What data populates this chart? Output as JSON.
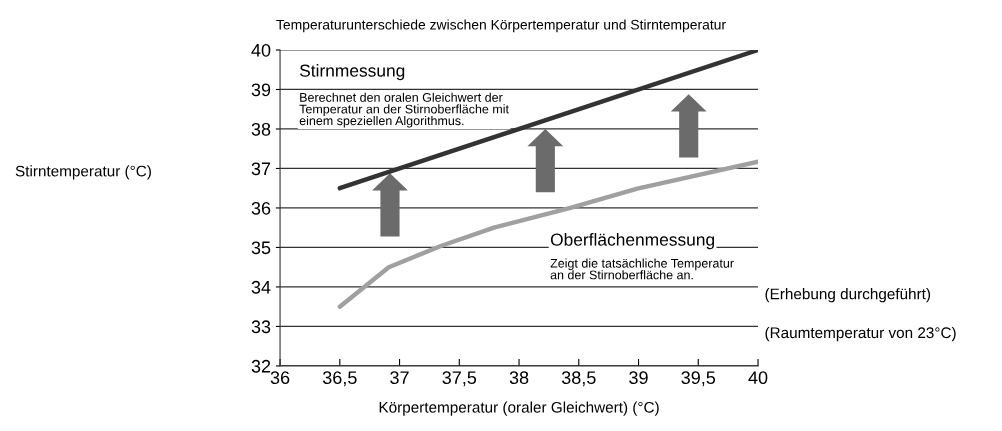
{
  "chart_data": {
    "type": "line",
    "title": "Temperaturunterschiede zwischen Körpertemperatur und Stirntemperatur",
    "xlabel": "Körpertemperatur (oraler Gleichwert) (°C)",
    "xlim": [
      36,
      40
    ],
    "ylim": [
      32,
      40
    ],
    "xticks": [
      36,
      {
        "value": 36.5,
        "label": "36,5"
      },
      37,
      {
        "value": 37.5,
        "label": "37,5"
      },
      38,
      {
        "value": 38.5,
        "label": "38,5"
      },
      39,
      {
        "value": 39.5,
        "label": "39,5"
      },
      40
    ],
    "yticks": [
      32,
      33,
      34,
      35,
      36,
      37,
      38,
      39,
      40
    ],
    "grid": "y",
    "legend": false,
    "series": [
      {
        "color": "#333333",
        "x": [
          36.5,
          40
        ],
        "values": [
          36.5,
          40
        ]
      },
      {
        "color": "#a0a0a0",
        "x": [
          36.5,
          36.91,
          37.34,
          37.79,
          38.43,
          38.99,
          40
        ],
        "values": [
          33.5,
          34.5,
          35.03,
          35.5,
          36.0,
          36.49,
          37.17
        ]
      }
    ],
    "annotations": [
      "Stirnmessung",
      "Oberflächenmessung",
      "Stirntemperatur (°C)",
      "Berechnet den oralen Gleichwert der\nTemperatur an der Stirnoberfläche mit\neinem speziellen Algorithmus.",
      "Zeigt die tatsächliche Temperatur\nan der Stirnoberfläche an.",
      "(Erhebung durchgeführt)",
      "(Raumtemperatur von 23°C)"
    ]
  }
}
